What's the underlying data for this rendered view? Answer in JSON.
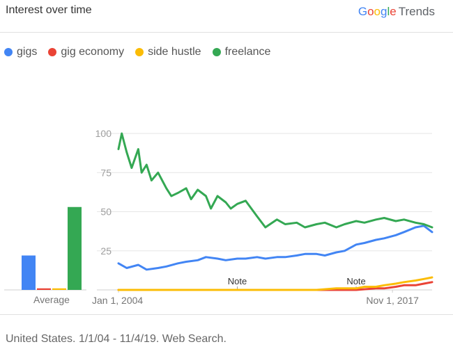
{
  "header": {
    "title": "Interest over time"
  },
  "brand": {
    "google_letters": [
      {
        "ch": "G",
        "color": "#4285F4"
      },
      {
        "ch": "o",
        "color": "#EA4335"
      },
      {
        "ch": "o",
        "color": "#FBBC05"
      },
      {
        "ch": "g",
        "color": "#4285F4"
      },
      {
        "ch": "l",
        "color": "#34A853"
      },
      {
        "ch": "e",
        "color": "#EA4335"
      }
    ],
    "product": "Trends"
  },
  "legend": [
    {
      "label": "gigs",
      "color": "#4285F4"
    },
    {
      "label": "gig economy",
      "color": "#EA4335"
    },
    {
      "label": "side hustle",
      "color": "#FBBC05"
    },
    {
      "label": "freelance",
      "color": "#34A853"
    }
  ],
  "footer": {
    "text": "United States. 1/1/04 - 11/4/19. Web Search."
  },
  "chart_data": [
    {
      "type": "bar",
      "xlabel": "Average",
      "categories": [
        "gigs",
        "gig economy",
        "side hustle",
        "freelance"
      ],
      "values": [
        22,
        1,
        1,
        53
      ],
      "colors": [
        "#4285F4",
        "#EA4335",
        "#FBBC05",
        "#34A853"
      ],
      "ylim": [
        0,
        100
      ]
    },
    {
      "type": "line",
      "yticks": [
        25,
        50,
        75,
        100
      ],
      "ylim": [
        0,
        100
      ],
      "xlim": [
        "2004-01",
        "2019-11"
      ],
      "xtick_labels": [
        {
          "date": "2004-01",
          "label": "Jan 1, 2004"
        },
        {
          "date": "2017-11",
          "label": "Nov 1, 2017"
        }
      ],
      "annotations": [
        {
          "date": "2010-01",
          "label": "Note"
        },
        {
          "date": "2016-01",
          "label": "Note"
        }
      ],
      "grid": true,
      "series": [
        {
          "name": "gigs",
          "color": "#4285F4",
          "points": [
            [
              "2004-01",
              17
            ],
            [
              "2004-06",
              14
            ],
            [
              "2005-01",
              16
            ],
            [
              "2005-06",
              13
            ],
            [
              "2006-01",
              14
            ],
            [
              "2006-06",
              15
            ],
            [
              "2007-01",
              17
            ],
            [
              "2007-06",
              18
            ],
            [
              "2008-01",
              19
            ],
            [
              "2008-06",
              21
            ],
            [
              "2009-01",
              20
            ],
            [
              "2009-06",
              19
            ],
            [
              "2010-01",
              20
            ],
            [
              "2010-06",
              20
            ],
            [
              "2011-01",
              21
            ],
            [
              "2011-06",
              20
            ],
            [
              "2012-01",
              21
            ],
            [
              "2012-06",
              21
            ],
            [
              "2013-01",
              22
            ],
            [
              "2013-06",
              23
            ],
            [
              "2014-01",
              23
            ],
            [
              "2014-06",
              22
            ],
            [
              "2015-01",
              24
            ],
            [
              "2015-06",
              25
            ],
            [
              "2016-01",
              29
            ],
            [
              "2016-06",
              30
            ],
            [
              "2017-01",
              32
            ],
            [
              "2017-06",
              33
            ],
            [
              "2018-01",
              35
            ],
            [
              "2018-06",
              37
            ],
            [
              "2019-01",
              40
            ],
            [
              "2019-06",
              41
            ],
            [
              "2019-11",
              37
            ]
          ]
        },
        {
          "name": "gig economy",
          "color": "#EA4335",
          "points": [
            [
              "2004-01",
              0
            ],
            [
              "2015-01",
              0
            ],
            [
              "2016-01",
              0
            ],
            [
              "2017-01",
              1
            ],
            [
              "2017-06",
              1
            ],
            [
              "2018-01",
              2
            ],
            [
              "2018-06",
              3
            ],
            [
              "2019-01",
              3
            ],
            [
              "2019-06",
              4
            ],
            [
              "2019-11",
              5
            ]
          ]
        },
        {
          "name": "side hustle",
          "color": "#FBBC05",
          "points": [
            [
              "2004-01",
              0
            ],
            [
              "2010-01",
              0
            ],
            [
              "2014-01",
              0
            ],
            [
              "2015-01",
              1
            ],
            [
              "2015-06",
              1
            ],
            [
              "2016-01",
              1
            ],
            [
              "2016-06",
              2
            ],
            [
              "2017-01",
              2
            ],
            [
              "2017-06",
              3
            ],
            [
              "2018-01",
              4
            ],
            [
              "2018-06",
              5
            ],
            [
              "2019-01",
              6
            ],
            [
              "2019-06",
              7
            ],
            [
              "2019-11",
              8
            ]
          ]
        },
        {
          "name": "freelance",
          "color": "#34A853",
          "points": [
            [
              "2004-01",
              90
            ],
            [
              "2004-03",
              100
            ],
            [
              "2004-06",
              88
            ],
            [
              "2004-09",
              78
            ],
            [
              "2005-01",
              90
            ],
            [
              "2005-03",
              75
            ],
            [
              "2005-06",
              80
            ],
            [
              "2005-09",
              70
            ],
            [
              "2006-01",
              75
            ],
            [
              "2006-06",
              65
            ],
            [
              "2006-09",
              60
            ],
            [
              "2007-01",
              62
            ],
            [
              "2007-06",
              65
            ],
            [
              "2007-09",
              58
            ],
            [
              "2008-01",
              64
            ],
            [
              "2008-06",
              60
            ],
            [
              "2008-09",
              52
            ],
            [
              "2009-01",
              60
            ],
            [
              "2009-06",
              56
            ],
            [
              "2009-09",
              52
            ],
            [
              "2010-01",
              55
            ],
            [
              "2010-06",
              57
            ],
            [
              "2011-01",
              47
            ],
            [
              "2011-06",
              40
            ],
            [
              "2012-01",
              45
            ],
            [
              "2012-06",
              42
            ],
            [
              "2013-01",
              43
            ],
            [
              "2013-06",
              40
            ],
            [
              "2014-01",
              42
            ],
            [
              "2014-06",
              43
            ],
            [
              "2015-01",
              40
            ],
            [
              "2015-06",
              42
            ],
            [
              "2016-01",
              44
            ],
            [
              "2016-06",
              43
            ],
            [
              "2017-01",
              45
            ],
            [
              "2017-06",
              46
            ],
            [
              "2018-01",
              44
            ],
            [
              "2018-06",
              45
            ],
            [
              "2019-01",
              43
            ],
            [
              "2019-06",
              42
            ],
            [
              "2019-11",
              40
            ]
          ]
        }
      ]
    }
  ]
}
